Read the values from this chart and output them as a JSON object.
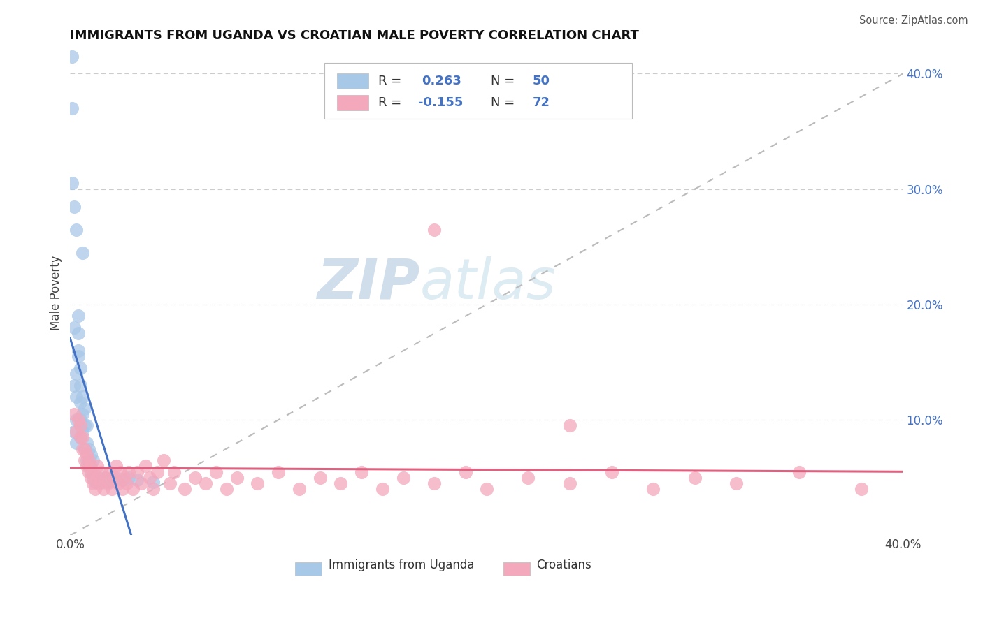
{
  "title": "IMMIGRANTS FROM UGANDA VS CROATIAN MALE POVERTY CORRELATION CHART",
  "source": "Source: ZipAtlas.com",
  "ylabel": "Male Poverty",
  "right_yticks": [
    "40.0%",
    "30.0%",
    "20.0%",
    "10.0%"
  ],
  "right_ytick_vals": [
    0.4,
    0.3,
    0.2,
    0.1
  ],
  "xlim": [
    0.0,
    0.4
  ],
  "ylim": [
    0.0,
    0.42
  ],
  "blue_color": "#A8C8E8",
  "pink_color": "#F4A8BC",
  "trend_blue": "#4472C4",
  "trend_pink": "#E06080",
  "watermark_zip": "ZIP",
  "watermark_atlas": "atlas",
  "uganda_x": [
    0.001,
    0.001,
    0.002,
    0.002,
    0.002,
    0.003,
    0.003,
    0.003,
    0.003,
    0.004,
    0.004,
    0.004,
    0.004,
    0.005,
    0.005,
    0.005,
    0.005,
    0.005,
    0.006,
    0.006,
    0.006,
    0.007,
    0.007,
    0.007,
    0.008,
    0.008,
    0.008,
    0.009,
    0.009,
    0.01,
    0.01,
    0.011,
    0.011,
    0.012,
    0.013,
    0.014,
    0.015,
    0.016,
    0.017,
    0.018,
    0.02,
    0.022,
    0.025,
    0.028,
    0.032,
    0.04,
    0.002,
    0.001,
    0.003,
    0.006
  ],
  "uganda_y": [
    0.415,
    0.37,
    0.09,
    0.13,
    0.18,
    0.08,
    0.1,
    0.12,
    0.14,
    0.155,
    0.16,
    0.175,
    0.19,
    0.085,
    0.1,
    0.115,
    0.13,
    0.145,
    0.09,
    0.105,
    0.12,
    0.075,
    0.095,
    0.11,
    0.065,
    0.08,
    0.095,
    0.06,
    0.075,
    0.055,
    0.07,
    0.05,
    0.065,
    0.046,
    0.048,
    0.05,
    0.046,
    0.048,
    0.05,
    0.046,
    0.048,
    0.05,
    0.048,
    0.05,
    0.048,
    0.046,
    0.285,
    0.305,
    0.265,
    0.245
  ],
  "croatian_x": [
    0.002,
    0.003,
    0.004,
    0.005,
    0.005,
    0.006,
    0.006,
    0.007,
    0.007,
    0.008,
    0.008,
    0.009,
    0.009,
    0.01,
    0.01,
    0.011,
    0.011,
    0.012,
    0.013,
    0.013,
    0.014,
    0.015,
    0.016,
    0.017,
    0.018,
    0.019,
    0.02,
    0.021,
    0.022,
    0.023,
    0.024,
    0.025,
    0.026,
    0.027,
    0.028,
    0.03,
    0.032,
    0.034,
    0.036,
    0.038,
    0.04,
    0.042,
    0.045,
    0.048,
    0.05,
    0.055,
    0.06,
    0.065,
    0.07,
    0.075,
    0.08,
    0.09,
    0.1,
    0.11,
    0.12,
    0.13,
    0.14,
    0.15,
    0.16,
    0.175,
    0.19,
    0.2,
    0.22,
    0.24,
    0.26,
    0.28,
    0.3,
    0.32,
    0.35,
    0.38,
    0.175,
    0.24
  ],
  "croatian_y": [
    0.105,
    0.09,
    0.1,
    0.085,
    0.095,
    0.075,
    0.085,
    0.065,
    0.075,
    0.06,
    0.07,
    0.055,
    0.065,
    0.05,
    0.06,
    0.045,
    0.055,
    0.04,
    0.05,
    0.06,
    0.045,
    0.055,
    0.04,
    0.05,
    0.045,
    0.055,
    0.04,
    0.05,
    0.06,
    0.045,
    0.055,
    0.04,
    0.05,
    0.045,
    0.055,
    0.04,
    0.055,
    0.045,
    0.06,
    0.05,
    0.04,
    0.055,
    0.065,
    0.045,
    0.055,
    0.04,
    0.05,
    0.045,
    0.055,
    0.04,
    0.05,
    0.045,
    0.055,
    0.04,
    0.05,
    0.045,
    0.055,
    0.04,
    0.05,
    0.045,
    0.055,
    0.04,
    0.05,
    0.045,
    0.055,
    0.04,
    0.05,
    0.045,
    0.055,
    0.04,
    0.265,
    0.095
  ]
}
